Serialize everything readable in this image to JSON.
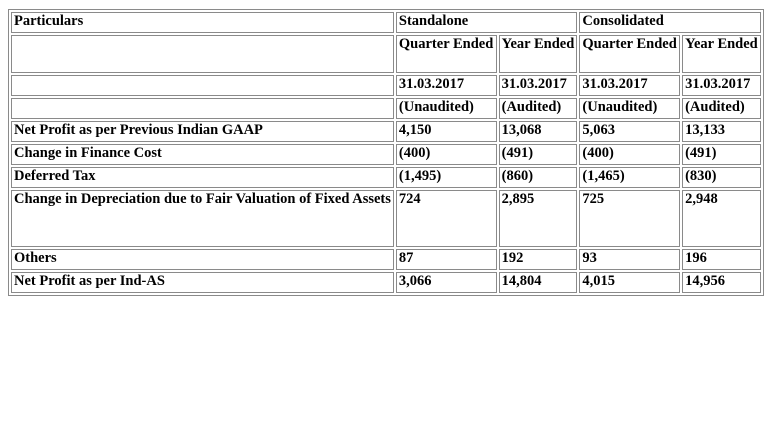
{
  "table": {
    "header": {
      "particulars": "Particulars",
      "standalone": "Standalone",
      "consolidated": "Consolidated"
    },
    "subheader": {
      "standalone_quarter": "Quarter Ended",
      "standalone_year": "Year Ended",
      "consolidated_quarter": "Quarter Ended",
      "consolidated_year": "Year Ended"
    },
    "dates": [
      "31.03.2017",
      "31.03.2017",
      "31.03.2017",
      "31.03.2017"
    ],
    "status": [
      "(Unaudited)",
      "(Audited)",
      "(Unaudited)",
      "(Audited)"
    ],
    "rows": [
      {
        "label": "Net Profit as per Previous Indian GAAP",
        "values": [
          "4,150",
          "13,068",
          "5,063",
          "13,133"
        ]
      },
      {
        "label": "Change in Finance Cost",
        "values": [
          "(400)",
          "(491)",
          "(400)",
          "(491)"
        ]
      },
      {
        "label": "Deferred Tax",
        "values": [
          "(1,495)",
          "(860)",
          "(1,465)",
          "(830)"
        ]
      },
      {
        "label": "Change in Depreciation due to Fair Valuation of Fixed Assets",
        "values": [
          "724",
          "2,895",
          "725",
          "2,948"
        ]
      },
      {
        "label": "Others",
        "values": [
          "87",
          "192",
          "93",
          "196"
        ]
      },
      {
        "label": "Net Profit as per Ind-AS",
        "values": [
          "3,066",
          "14,804",
          "4,015",
          "14,956"
        ]
      }
    ]
  }
}
